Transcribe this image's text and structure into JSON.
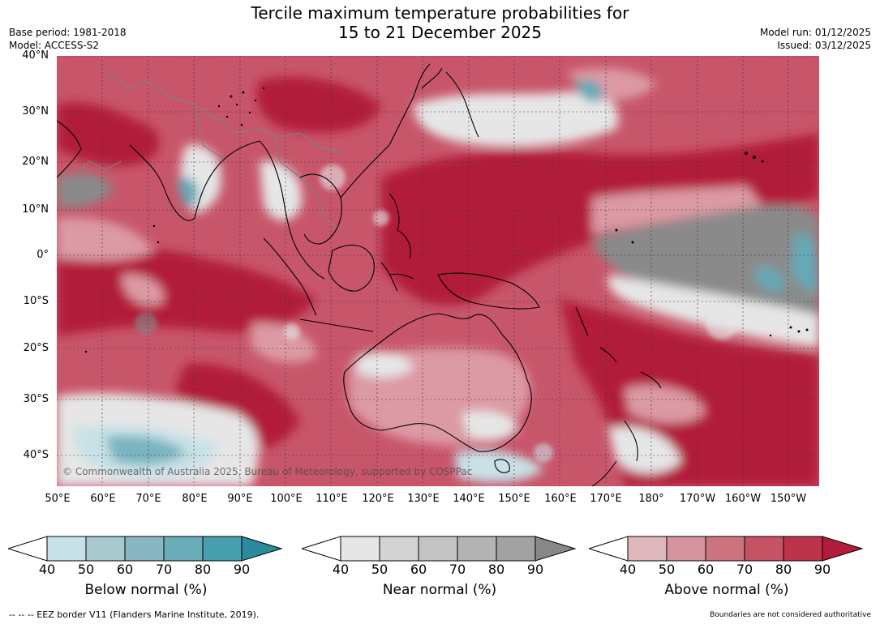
{
  "title": {
    "line1": "Tercile maximum temperature probabilities for",
    "line2": "15 to 21 December 2025"
  },
  "meta": {
    "base_period": "Base period: 1981-2018",
    "model": "Model: ACCESS-S2",
    "model_run": "Model run: 01/12/2025",
    "issued": "Issued: 03/12/2025"
  },
  "map": {
    "copyright": "© Commonwealth of Australia 2025, Bureau of Meteorology, supported by COSPPac",
    "lat_labels": [
      "40°N",
      "30°N",
      "20°N",
      "10°N",
      "0°",
      "10°S",
      "20°S",
      "30°S",
      "40°S"
    ],
    "lon_labels": [
      "50°E",
      "60°E",
      "70°E",
      "80°E",
      "90°E",
      "100°E",
      "110°E",
      "120°E",
      "130°E",
      "140°E",
      "150°E",
      "160°E",
      "170°E",
      "180°",
      "170°W",
      "160°W",
      "150°W"
    ],
    "colors": {
      "above_strong": "#b21c3a",
      "above_mid": "#c8566a",
      "above_light": "#dc9aa4",
      "near_light": "#e6e6e6",
      "near_mid": "#8a8a8a",
      "below_light": "#c8e1e7",
      "below_mid": "#65a9b6",
      "land_outline": "#000000",
      "border": "#808080"
    }
  },
  "colorbars": {
    "below": {
      "title": "Below normal (%)",
      "ticks": [
        "40",
        "50",
        "60",
        "70",
        "80",
        "90"
      ],
      "colors": [
        "#c8e1e7",
        "#a7c9cd",
        "#8ab6c3",
        "#6aacb8",
        "#479fae",
        "#2b8b9e"
      ]
    },
    "near": {
      "title": "Near normal (%)",
      "ticks": [
        "40",
        "50",
        "60",
        "70",
        "80",
        "90"
      ],
      "colors": [
        "#e6e6e6",
        "#d3d3d3",
        "#c3c3c3",
        "#b3b3b3",
        "#a2a2a2",
        "#878787"
      ]
    },
    "above": {
      "title": "Above normal (%)",
      "ticks": [
        "40",
        "50",
        "60",
        "70",
        "80",
        "90"
      ],
      "colors": [
        "#dfb6bc",
        "#d5949e",
        "#cb737f",
        "#c55364",
        "#bc344a",
        "#b21c3a"
      ]
    }
  },
  "footer": {
    "eez": "--  --  -- EEZ border V11 (Flanders Marine Institute, 2019).",
    "disclaimer": "Boundaries are not considered authoritative"
  }
}
